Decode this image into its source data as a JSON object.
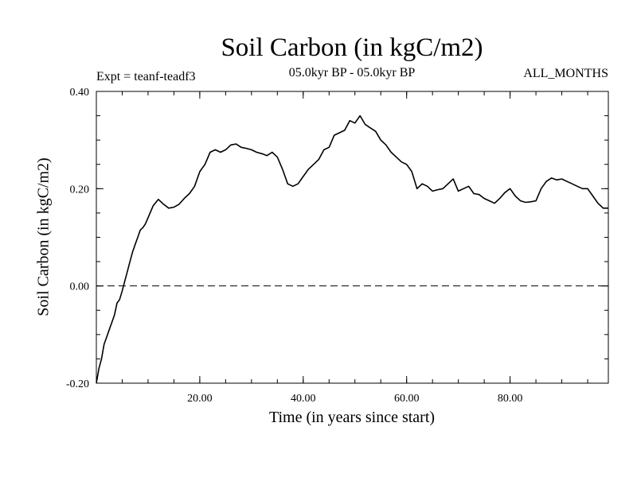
{
  "chart_data": {
    "type": "line",
    "title": "Soil Carbon (in kgC/m2)",
    "subtitle": "05.0kyr BP - 05.0kyr BP",
    "annotation_left": "Expt = teanf-teadf3",
    "annotation_right": "ALL_MONTHS",
    "xlabel": "Time (in years since start)",
    "ylabel": "Soil Carbon (in kgC/m2)",
    "xlim": [
      0,
      99
    ],
    "ylim": [
      -0.2,
      0.4
    ],
    "x_ticks": [
      20,
      40,
      60,
      80
    ],
    "x_tick_labels": [
      "20.00",
      "40.00",
      "60.00",
      "80.00"
    ],
    "y_ticks": [
      -0.2,
      0.0,
      0.2,
      0.4
    ],
    "y_tick_labels": [
      "-0.20",
      "0.00",
      "0.20",
      "0.40"
    ],
    "reference_line": {
      "y": 0.0,
      "style": "dashed"
    },
    "series": [
      {
        "color": "#000000",
        "x": [
          0,
          0.5,
          1,
          1.5,
          2,
          2.5,
          3,
          3.5,
          4,
          4.5,
          5,
          5.5,
          6,
          6.5,
          7,
          7.5,
          8,
          8.5,
          9,
          9.5,
          10,
          11,
          12,
          13,
          14,
          15,
          16,
          17,
          18,
          19,
          20,
          21,
          22,
          23,
          24,
          25,
          26,
          27,
          28,
          29,
          30,
          31,
          32,
          33,
          34,
          35,
          36,
          37,
          38,
          39,
          40,
          41,
          42,
          43,
          44,
          45,
          46,
          47,
          48,
          49,
          50,
          51,
          52,
          53,
          54,
          55,
          56,
          57,
          58,
          59,
          60,
          61,
          62,
          63,
          64,
          65,
          66,
          67,
          68,
          69,
          70,
          71,
          72,
          73,
          74,
          75,
          76,
          77,
          78,
          79,
          80,
          81,
          82,
          83,
          84,
          85,
          86,
          87,
          88,
          89,
          90,
          91,
          92,
          93,
          94,
          95,
          96,
          97,
          98,
          99
        ],
        "y": [
          -0.2,
          -0.17,
          -0.15,
          -0.12,
          -0.105,
          -0.09,
          -0.075,
          -0.06,
          -0.035,
          -0.028,
          -0.01,
          0.01,
          0.03,
          0.05,
          0.07,
          0.085,
          0.1,
          0.115,
          0.12,
          0.128,
          0.14,
          0.165,
          0.178,
          0.168,
          0.16,
          0.162,
          0.168,
          0.18,
          0.19,
          0.205,
          0.235,
          0.25,
          0.275,
          0.28,
          0.275,
          0.28,
          0.29,
          0.292,
          0.285,
          0.283,
          0.28,
          0.275,
          0.272,
          0.268,
          0.275,
          0.265,
          0.24,
          0.21,
          0.205,
          0.21,
          0.225,
          0.24,
          0.25,
          0.26,
          0.28,
          0.285,
          0.31,
          0.315,
          0.32,
          0.34,
          0.335,
          0.35,
          0.332,
          0.325,
          0.318,
          0.3,
          0.29,
          0.275,
          0.265,
          0.255,
          0.25,
          0.235,
          0.2,
          0.21,
          0.205,
          0.195,
          0.198,
          0.2,
          0.21,
          0.22,
          0.195,
          0.2,
          0.205,
          0.19,
          0.188,
          0.18,
          0.175,
          0.17,
          0.18,
          0.192,
          0.2,
          0.185,
          0.175,
          0.172,
          0.173,
          0.175,
          0.2,
          0.215,
          0.222,
          0.218,
          0.22,
          0.215,
          0.21,
          0.205,
          0.2,
          0.2,
          0.185,
          0.17,
          0.16,
          0.16
        ]
      }
    ]
  }
}
